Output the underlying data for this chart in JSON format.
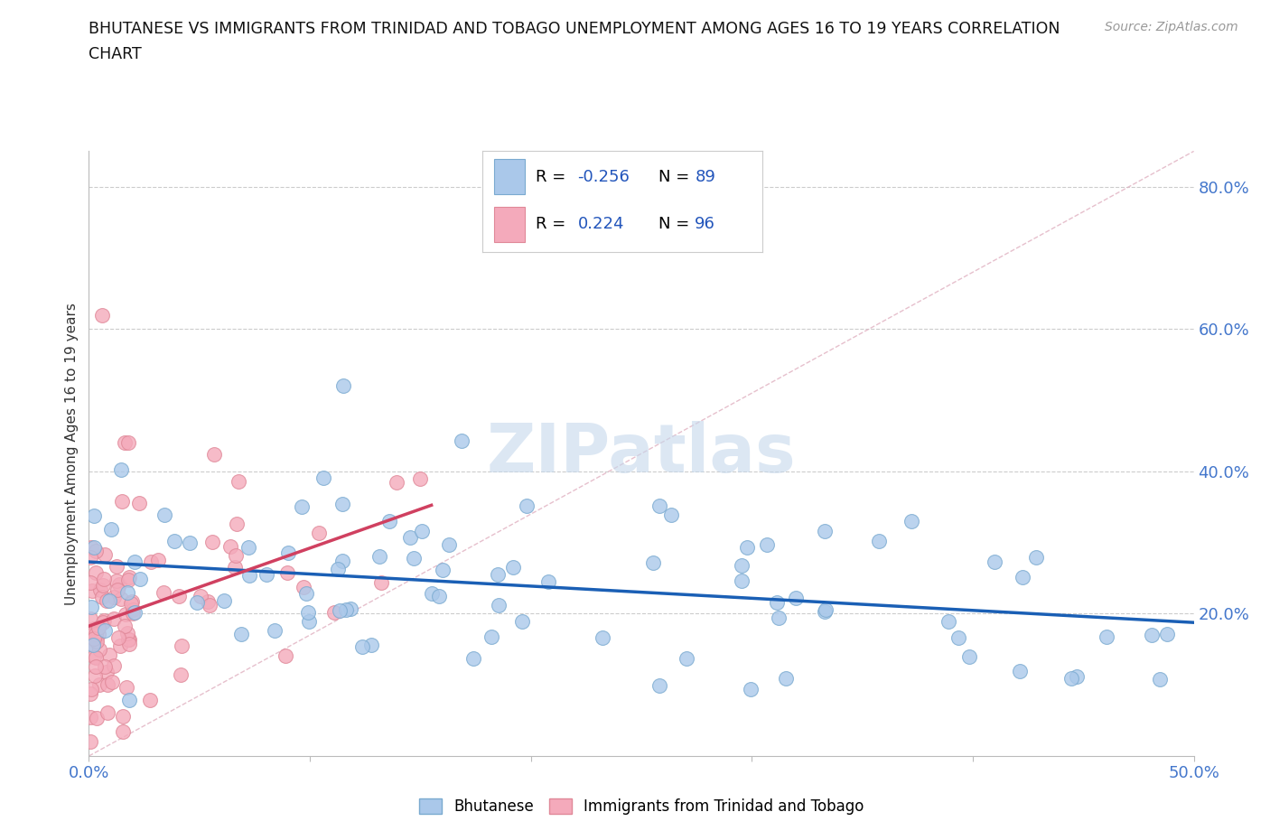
{
  "title_line1": "BHUTANESE VS IMMIGRANTS FROM TRINIDAD AND TOBAGO UNEMPLOYMENT AMONG AGES 16 TO 19 YEARS CORRELATION",
  "title_line2": "CHART",
  "source_text": "Source: ZipAtlas.com",
  "ylabel": "Unemployment Among Ages 16 to 19 years",
  "xlim": [
    0.0,
    0.5
  ],
  "ylim": [
    0.0,
    0.85
  ],
  "blue_color": "#aac8ea",
  "pink_color": "#f4aabb",
  "blue_edge": "#7aaad0",
  "pink_edge": "#e08898",
  "trend_blue": "#1a5fb5",
  "trend_pink": "#d04060",
  "diag_color": "#e0b0c0",
  "grid_color": "#cccccc",
  "watermark_color": "#c5d8ec",
  "legend_R_color": "#2255bb",
  "legend_N_color": "#2255bb",
  "tick_color": "#4477cc",
  "legend_R_blue": "-0.256",
  "legend_N_blue": "89",
  "legend_R_pink": "0.224",
  "legend_N_pink": "96"
}
